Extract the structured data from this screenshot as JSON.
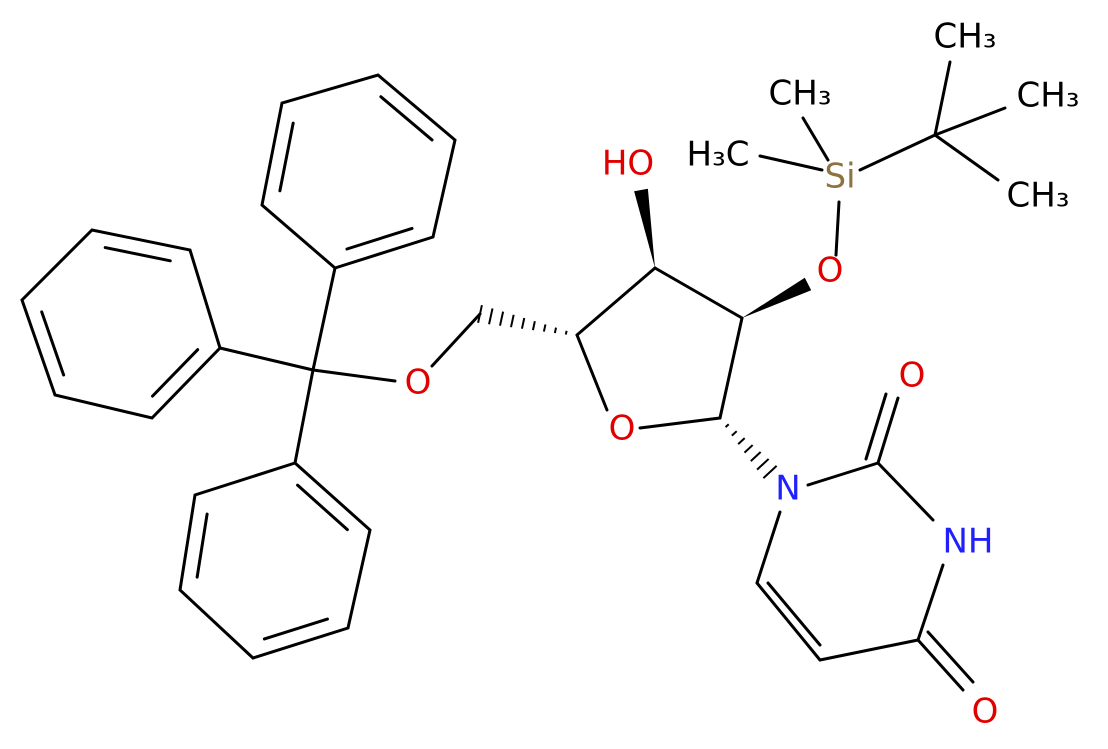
{
  "atoms": [
    {
      "label": "HO"
    },
    {
      "label": "H₃C"
    },
    {
      "label": "CH₃"
    },
    {
      "label": "Si"
    },
    {
      "label": "CH₃"
    },
    {
      "label": "CH₃"
    },
    {
      "label": "CH₃"
    },
    {
      "label": "O"
    },
    {
      "label": "O"
    },
    {
      "label": "O"
    },
    {
      "label": "N"
    },
    {
      "label": "O"
    },
    {
      "label": "NH"
    },
    {
      "label": "O"
    }
  ]
}
